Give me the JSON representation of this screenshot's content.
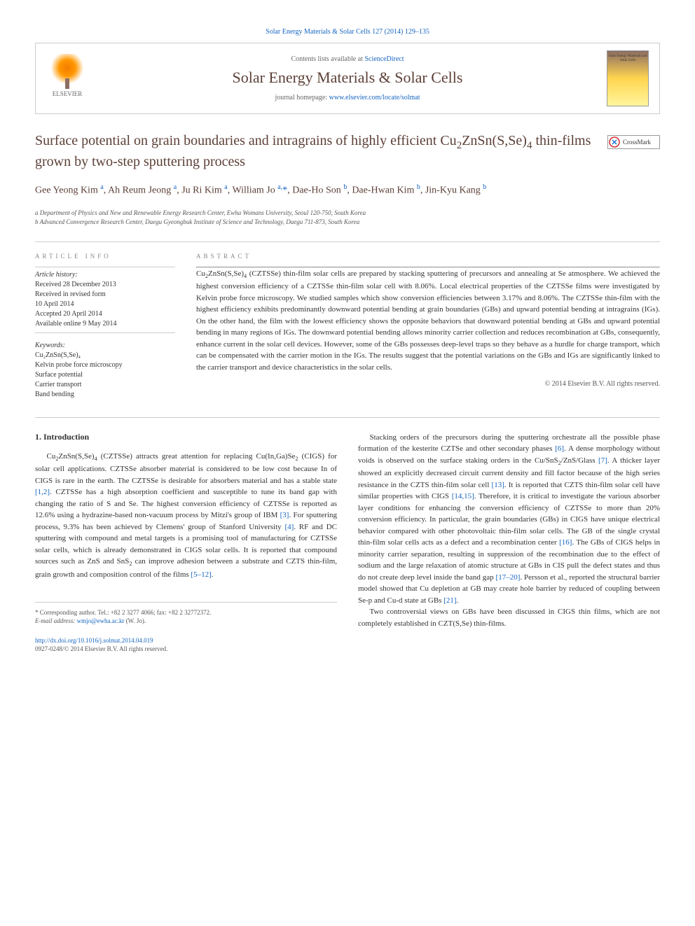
{
  "header": {
    "top_citation": "Solar Energy Materials & Solar Cells 127 (2014) 129–135",
    "contents_prefix": "Contents lists available at ",
    "contents_link_text": "ScienceDirect",
    "journal_name": "Solar Energy Materials & Solar Cells",
    "homepage_prefix": "journal homepage: ",
    "homepage_link": "www.elsevier.com/locate/solmat",
    "elsevier_label": "ELSEVIER",
    "cover_text": "Solar Energy Materials and Solar Cells",
    "crossmark_label": "CrossMark"
  },
  "article": {
    "title_html": "Surface potential on grain boundaries and intragrains of highly efficient Cu<sub>2</sub>ZnSn(S,Se)<sub>4</sub> thin-films grown by two-step sputtering process",
    "authors_html": "Gee Yeong Kim <sup>a</sup>, Ah Reum Jeong <sup>a</sup>, Ju Ri Kim <sup>a</sup>, William Jo <sup>a,</sup><span class='corr'>*</span>, Dae-Ho Son <sup>b</sup>, Dae-Hwan Kim <sup>b</sup>, Jin-Kyu Kang <sup>b</sup>",
    "affiliations": [
      "a Department of Physics and New and Renewable Energy Research Center, Ewha Womans University, Seoul 120-750, South Korea",
      "b Advanced Convergence Research Center, Daegu Gyeongbuk Institute of Science and Technology, Daegu 711-873, South Korea"
    ]
  },
  "info": {
    "heading": "ARTICLE INFO",
    "history_label": "Article history:",
    "history": [
      "Received 28 December 2013",
      "Received in revised form",
      "10 April 2014",
      "Accepted 20 April 2014",
      "Available online 9 May 2014"
    ],
    "keywords_label": "Keywords:",
    "keywords": [
      "Cu₂ZnSn(S,Se)₄",
      "Kelvin probe force microscopy",
      "Surface potential",
      "Carrier transport",
      "Band bending"
    ]
  },
  "abstract": {
    "heading": "ABSTRACT",
    "text_html": "Cu<sub>2</sub>ZnSn(S,Se)<sub>4</sub> (CZTSSe) thin-film solar cells are prepared by stacking sputtering of precursors and annealing at Se atmosphere. We achieved the highest conversion efficiency of a CZTSSe thin-film solar cell with 8.06%. Local electrical properties of the CZTSSe films were investigated by Kelvin probe force microscopy. We studied samples which show conversion efficiencies between 3.17% and 8.06%. The CZTSSe thin-film with the highest efficiency exhibits predominantly downward potential bending at grain boundaries (GBs) and upward potential bending at intragrains (IGs). On the other hand, the film with the lowest efficiency shows the opposite behaviors that downward potential bending at GBs and upward potential bending in many regions of IGs. The downward potential bending allows minority carrier collection and reduces recombination at GBs, consequently, enhance current in the solar cell devices. However, some of the GBs possesses deep-level traps so they behave as a hurdle for charge transport, which can be compensated with the carrier motion in the IGs. The results suggest that the potential variations on the GBs and IGs are significantly linked to the carrier transport and device characteristics in the solar cells.",
    "copyright": "© 2014 Elsevier B.V. All rights reserved."
  },
  "body": {
    "section_heading": "1. Introduction",
    "col1_html": "<p>Cu<sub>2</sub>ZnSn(S,Se)<sub>4</sub> (CZTSSe) attracts great attention for replacing Cu(In,Ga)Se<sub>2</sub> (CIGS) for solar cell applications. CZTSSe absorber material is considered to be low cost because In of CIGS is rare in the earth. The CZTSSe is desirable for absorbers material and has a stable state <a class='ref-link' href='#'>[1,2]</a>. CZTSSe has a high absorption coefficient and susceptible to tune its band gap with changing the ratio of S and Se. The highest conversion efficiency of CZTSSe is reported as 12.6% using a hydrazine-based non-vacuum process by Mitzi's group of IBM <a class='ref-link' href='#'>[3]</a>. For sputtering process, 9.3% has been achieved by Clemens' group of Stanford University <a class='ref-link' href='#'>[4]</a>. RF and DC sputtering with compound and metal targets is a promising tool of manufacturing for CZTSSe solar cells, which is already demonstrated in CIGS solar cells. It is reported that compound sources such as ZnS and SnS<sub>2</sub> can improve adhesion between a substrate and CZTS thin-film, grain growth and composition control of the films <a class='ref-link' href='#'>[5–12]</a>.</p>",
    "col2_html": "<p>Stacking orders of the precursors during the sputtering orchestrate all the possible phase formation of the kesterite CZTSe and other secondary phases <a class='ref-link' href='#'>[6]</a>. A dense morphology without voids is observed on the surface staking orders in the Cu/SnS<sub>2</sub>/ZnS/Glass <a class='ref-link' href='#'>[7]</a>. A thicker layer showed an explicitly decreased circuit current density and fill factor because of the high series resistance in the CZTS thin-film solar cell <a class='ref-link' href='#'>[13]</a>. It is reported that CZTS thin-film solar cell have similar properties with CIGS <a class='ref-link' href='#'>[14,15]</a>. Therefore, it is critical to investigate the various absorber layer conditions for enhancing the conversion efficiency of CZTSSe to more than 20% conversion efficiency. In particular, the grain boundaries (GBs) in CIGS have unique electrical behavior compared with other photovoltaic thin-film solar cells. The GB of the single crystal thin-film solar cells acts as a defect and a recombination center <a class='ref-link' href='#'>[16]</a>. The GBs of CIGS helps in minority carrier separation, resulting in suppression of the recombination due to the effect of sodium and the large relaxation of atomic structure at GBs in CIS pull the defect states and thus do not create deep level inside the band gap <a class='ref-link' href='#'>[17–20]</a>. Persson et al., reported the structural barrier model showed that Cu depletion at GB may create hole barrier by reduced of coupling between Se-p and Cu-d state at GBs <a class='ref-link' href='#'>[21]</a>.</p><p>Two controversial views on GBs have been discussed in CIGS thin films, which are not completely established in CZT(S,Se) thin-films.</p>"
  },
  "footnote": {
    "corr_line": "* Corresponding author. Tel.: +82 2 3277 4066; fax: +82 2 32772372.",
    "email_label": "E-mail address: ",
    "email": "wmjo@ewha.ac.kr",
    "email_suffix": " (W. Jo)."
  },
  "doi": {
    "link": "http://dx.doi.org/10.1016/j.solmat.2014.04.019",
    "issn_line": "0927-0248/© 2014 Elsevier B.V. All rights reserved."
  },
  "colors": {
    "link": "#1565c0",
    "brown": "#5d4037",
    "border": "#cccccc",
    "text": "#333333",
    "muted": "#888888"
  },
  "typography": {
    "body_fontsize": 11,
    "title_fontsize": 20,
    "journal_fontsize": 22,
    "small_fontsize": 9
  }
}
